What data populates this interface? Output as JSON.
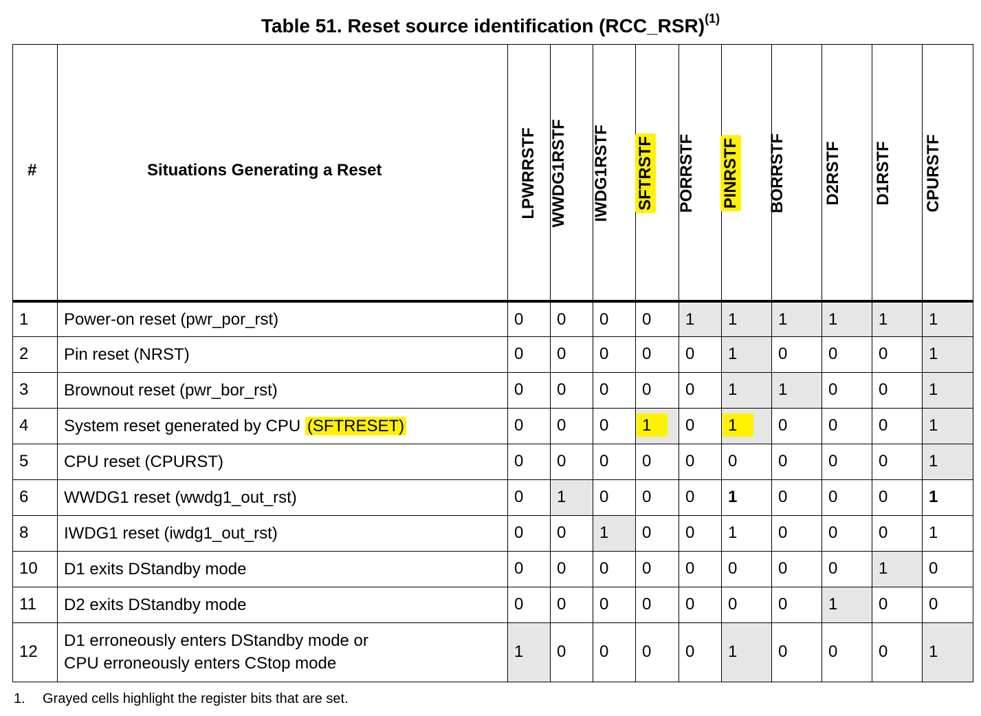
{
  "title": "Table 51. Reset source identification (RCC_RSR)",
  "title_footnote_ref": "(1)",
  "header": {
    "hash": "#",
    "situations": "Situations Generating a Reset",
    "columns": [
      "LPWRRSTF",
      "WWDG1RSTF",
      "IWDG1RSTF",
      "SFTRSTF",
      "PORRSTF",
      "PINRSTF",
      "BORRSTF",
      "D2RSTF",
      "D1RSTF",
      "CPURSTF"
    ],
    "highlighted_columns": [
      "SFTRSTF",
      "PINRSTF"
    ]
  },
  "rows": [
    {
      "num": "1",
      "desc": [
        "Power-on reset (pwr_por_rst)"
      ],
      "values": [
        "0",
        "0",
        "0",
        "0",
        "1",
        "1",
        "1",
        "1",
        "1",
        "1"
      ],
      "gray": [
        false,
        false,
        false,
        false,
        true,
        true,
        true,
        true,
        true,
        true
      ]
    },
    {
      "num": "2",
      "desc": [
        "Pin reset (NRST)"
      ],
      "values": [
        "0",
        "0",
        "0",
        "0",
        "0",
        "1",
        "0",
        "0",
        "0",
        "1"
      ],
      "gray": [
        false,
        false,
        false,
        false,
        false,
        true,
        false,
        false,
        false,
        true
      ]
    },
    {
      "num": "3",
      "desc": [
        "Brownout reset (pwr_bor_rst)"
      ],
      "values": [
        "0",
        "0",
        "0",
        "0",
        "0",
        "1",
        "1",
        "0",
        "0",
        "1"
      ],
      "gray": [
        false,
        false,
        false,
        false,
        false,
        true,
        true,
        false,
        false,
        true
      ]
    },
    {
      "num": "4",
      "desc": [
        "System reset generated by CPU "
      ],
      "desc_highlight": "(SFTRESET)",
      "values": [
        "0",
        "0",
        "0",
        "1",
        "0",
        "1",
        "0",
        "0",
        "0",
        "1"
      ],
      "gray": [
        false,
        false,
        false,
        true,
        false,
        true,
        false,
        false,
        false,
        true
      ],
      "yellow": [
        false,
        false,
        false,
        true,
        false,
        true,
        false,
        false,
        false,
        false
      ]
    },
    {
      "num": "5",
      "desc": [
        "CPU reset (CPURST)"
      ],
      "values": [
        "0",
        "0",
        "0",
        "0",
        "0",
        "0",
        "0",
        "0",
        "0",
        "1"
      ],
      "gray": [
        false,
        false,
        false,
        false,
        false,
        false,
        false,
        false,
        false,
        true
      ]
    },
    {
      "num": "6",
      "desc": [
        "WWDG1 reset (wwdg1_out_rst)"
      ],
      "values": [
        "0",
        "1",
        "0",
        "0",
        "0",
        "1",
        "0",
        "0",
        "0",
        "1"
      ],
      "gray": [
        false,
        true,
        false,
        false,
        false,
        false,
        false,
        false,
        false,
        false
      ],
      "bold": [
        false,
        false,
        false,
        false,
        false,
        true,
        false,
        false,
        false,
        true
      ]
    },
    {
      "num": "8",
      "desc": [
        "IWDG1 reset (iwdg1_out_rst)"
      ],
      "values": [
        "0",
        "0",
        "1",
        "0",
        "0",
        "1",
        "0",
        "0",
        "0",
        "1"
      ],
      "gray": [
        false,
        false,
        true,
        false,
        false,
        false,
        false,
        false,
        false,
        false
      ]
    },
    {
      "num": "10",
      "desc": [
        "D1 exits DStandby mode"
      ],
      "values": [
        "0",
        "0",
        "0",
        "0",
        "0",
        "0",
        "0",
        "0",
        "1",
        "0"
      ],
      "gray": [
        false,
        false,
        false,
        false,
        false,
        false,
        false,
        false,
        true,
        false
      ]
    },
    {
      "num": "11",
      "desc": [
        "D2 exits DStandby mode"
      ],
      "values": [
        "0",
        "0",
        "0",
        "0",
        "0",
        "0",
        "0",
        "1",
        "0",
        "0"
      ],
      "gray": [
        false,
        false,
        false,
        false,
        false,
        false,
        false,
        true,
        false,
        false
      ]
    },
    {
      "num": "12",
      "desc": [
        "D1 erroneously enters DStandby mode or",
        "CPU erroneously enters CStop mode"
      ],
      "values": [
        "1",
        "0",
        "0",
        "0",
        "0",
        "1",
        "0",
        "0",
        "0",
        "1"
      ],
      "gray": [
        true,
        false,
        false,
        false,
        false,
        true,
        false,
        false,
        false,
        true
      ]
    }
  ],
  "footnote": {
    "num": "1.",
    "text": "Grayed cells highlight the register bits that are set."
  },
  "colors": {
    "gray_cell": "#e6e6e6",
    "highlight": "#fff200",
    "rule": "#000000"
  }
}
